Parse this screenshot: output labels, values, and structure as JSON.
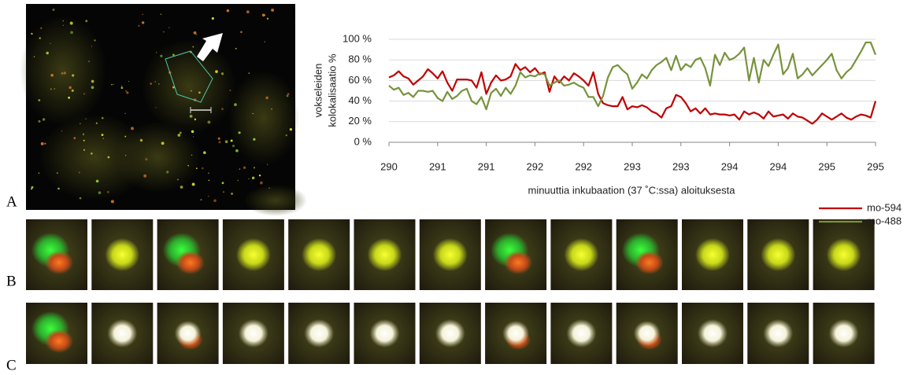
{
  "panel_labels": [
    "A",
    "B",
    "C"
  ],
  "chart_data": {
    "type": "line",
    "xlabel": "minuuttia inkubaation (37 ˚C:ssa) aloituksesta",
    "ylabel": [
      "vokseleiden",
      "kolokalisaatio %"
    ],
    "xlim": [
      290,
      295
    ],
    "xticks": [
      290,
      {
        "value": 290.5,
        "label": "291"
      },
      291,
      {
        "value": 291.5,
        "label": "292"
      },
      292,
      {
        "value": 292.5,
        "label": "293"
      },
      293,
      {
        "value": 293.5,
        "label": "294"
      },
      294,
      {
        "value": 294.5,
        "label": "295"
      },
      295
    ],
    "ylim": [
      0,
      100
    ],
    "yticks": [
      {
        "value": 0,
        "label": "0 %"
      },
      {
        "value": 20,
        "label": "20 %"
      },
      {
        "value": 40,
        "label": "40 %"
      },
      {
        "value": 60,
        "label": "60 %"
      },
      {
        "value": 80,
        "label": "80 %"
      },
      {
        "value": 100,
        "label": "100 %"
      }
    ],
    "grid": true,
    "legend": "lower right",
    "x": [
      290,
      290.05,
      290.1,
      290.15,
      290.2,
      290.25,
      290.3,
      290.35,
      290.4,
      290.45,
      290.5,
      290.55,
      290.6,
      290.65,
      290.7,
      290.75,
      290.8,
      290.85,
      290.9,
      290.95,
      291,
      291.05,
      291.1,
      291.15,
      291.2,
      291.25,
      291.3,
      291.35,
      291.4,
      291.45,
      291.5,
      291.55,
      291.6,
      291.65,
      291.7,
      291.75,
      291.8,
      291.85,
      291.9,
      291.95,
      292,
      292.05,
      292.1,
      292.15,
      292.2,
      292.25,
      292.3,
      292.35,
      292.4,
      292.45,
      292.5,
      292.55,
      292.6,
      292.65,
      292.7,
      292.75,
      292.8,
      292.85,
      292.9,
      292.95,
      293,
      293.05,
      293.1,
      293.15,
      293.2,
      293.25,
      293.3,
      293.35,
      293.4,
      293.45,
      293.5,
      293.55,
      293.6,
      293.65,
      293.7,
      293.75,
      293.8,
      293.85,
      293.9,
      293.95,
      294,
      294.05,
      294.1,
      294.15,
      294.2,
      294.25,
      294.3,
      294.35,
      294.4,
      294.45,
      294.5,
      294.55,
      294.6,
      294.65,
      294.7,
      294.75,
      294.8,
      294.85,
      294.9,
      294.95,
      295
    ],
    "series": [
      {
        "name": "mo-594",
        "color": "#c00000",
        "values": [
          63,
          65,
          69,
          64,
          62,
          56,
          60,
          64,
          71,
          67,
          62,
          69,
          58,
          50,
          61,
          61,
          61,
          60,
          53,
          68,
          47,
          58,
          65,
          60,
          61,
          64,
          76,
          70,
          73,
          68,
          72,
          66,
          68,
          49,
          64,
          58,
          64,
          60,
          67,
          64,
          60,
          55,
          68,
          47,
          38,
          36,
          35,
          35,
          44,
          32,
          35,
          34,
          36,
          34,
          30,
          28,
          24,
          33,
          35,
          46,
          44,
          38,
          30,
          33,
          28,
          33,
          27,
          28,
          27,
          27,
          26,
          27,
          22,
          30,
          27,
          29,
          27,
          23,
          30,
          25,
          26,
          27,
          23,
          28,
          25,
          24,
          21,
          18,
          22,
          28,
          25,
          22,
          25,
          28,
          24,
          22,
          25,
          27,
          26,
          24,
          40
        ]
      },
      {
        "name": "mo-488",
        "color": "#77933c",
        "values": [
          55,
          51,
          53,
          46,
          48,
          44,
          50,
          50,
          49,
          50,
          43,
          40,
          49,
          42,
          45,
          50,
          52,
          40,
          37,
          44,
          32,
          48,
          52,
          45,
          53,
          47,
          55,
          68,
          63,
          65,
          64,
          67,
          66,
          55,
          58,
          60,
          55,
          56,
          58,
          55,
          53,
          44,
          44,
          35,
          45,
          63,
          73,
          75,
          70,
          66,
          52,
          58,
          66,
          62,
          70,
          75,
          78,
          82,
          70,
          84,
          70,
          76,
          73,
          80,
          82,
          72,
          55,
          85,
          75,
          87,
          80,
          82,
          86,
          92,
          60,
          82,
          58,
          80,
          74,
          85,
          95,
          66,
          72,
          86,
          62,
          66,
          72,
          65,
          70,
          75,
          80,
          86,
          70,
          62,
          68,
          72,
          80,
          88,
          97,
          97,
          85
        ]
      }
    ]
  }
}
